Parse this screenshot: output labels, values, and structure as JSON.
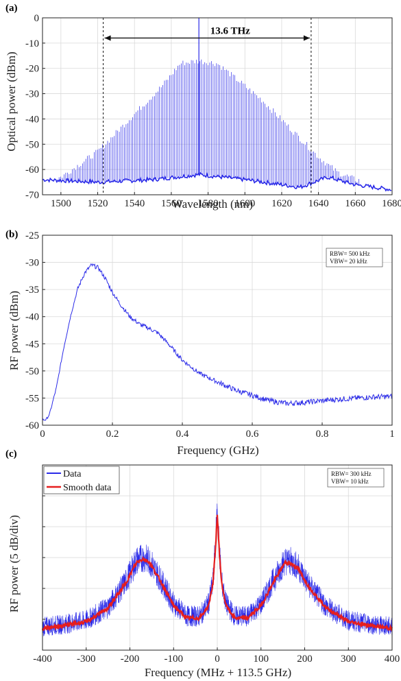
{
  "colors": {
    "blue": "#2a2ae8",
    "red": "#e61e1e",
    "grid": "#d9d9d9",
    "axis": "#222222"
  },
  "chart_data": [
    {
      "panel": "(a)",
      "type": "line",
      "xlabel": "Wavelength (nm)",
      "ylabel": "Optical power (dBm)",
      "xlim": [
        1490,
        1680
      ],
      "ylim": [
        -70,
        0
      ],
      "xticks": [
        1500,
        1520,
        1540,
        1560,
        1580,
        1600,
        1620,
        1640,
        1660,
        1680
      ],
      "yticks": [
        0,
        -10,
        -20,
        -30,
        -40,
        -50,
        -60,
        -70
      ],
      "grid": true,
      "series": [
        {
          "style": "comb",
          "line_spacing_nm": 0.91,
          "envelope": {
            "x": [
              1490,
              1500,
              1520,
              1540,
              1555,
              1565,
              1575,
              1585,
              1595,
              1610,
              1625,
              1640,
              1650,
              1660,
              1680
            ],
            "y": [
              -64,
              -63,
              -53,
              -38,
              -27,
              -18,
              -17,
              -18,
              -24,
              -33,
              -44,
              -55,
              -61,
              -64,
              -66
            ]
          },
          "peak_line": {
            "x": 1575,
            "y": 0
          },
          "noise_floor": {
            "x": [
              1490,
              1520,
              1550,
              1575,
              1600,
              1630,
              1645,
              1660,
              1680
            ],
            "y": [
              -64,
              -65,
              -64,
              -62,
              -64,
              -67,
              -63,
              -66,
              -68
            ]
          }
        }
      ],
      "annotation": {
        "text": "13.6 THz",
        "x_start": 1523,
        "x_end": 1636,
        "y": -8
      }
    },
    {
      "panel": "(b)",
      "type": "line",
      "xlabel": "Frequency (GHz)",
      "ylabel": "RF power (dBm)",
      "xlim": [
        0,
        1
      ],
      "ylim": [
        -60,
        -25
      ],
      "xticks": [
        0,
        0.2,
        0.4,
        0.6,
        0.8,
        1
      ],
      "xticklabels": [
        "0",
        "0.2",
        "0.4",
        "0.6",
        "0.8",
        "1"
      ],
      "yticks": [
        -25,
        -30,
        -35,
        -40,
        -45,
        -50,
        -55,
        -60
      ],
      "grid": true,
      "note": [
        "RBW= 500 kHz",
        "VBW= 20 kHz"
      ],
      "series": [
        {
          "x": [
            0,
            0.01,
            0.02,
            0.04,
            0.06,
            0.08,
            0.1,
            0.12,
            0.14,
            0.16,
            0.18,
            0.2,
            0.22,
            0.25,
            0.28,
            0.3,
            0.33,
            0.36,
            0.4,
            0.45,
            0.5,
            0.55,
            0.6,
            0.65,
            0.7,
            0.75,
            0.8,
            0.85,
            0.9,
            0.95,
            1.0
          ],
          "y": [
            -59,
            -59,
            -58,
            -53,
            -46,
            -40,
            -35,
            -32,
            -30.5,
            -31,
            -33,
            -35.5,
            -37.5,
            -40,
            -41.5,
            -42,
            -43,
            -45,
            -48,
            -50.5,
            -52,
            -53.5,
            -54.5,
            -55.5,
            -56,
            -55.8,
            -55.5,
            -55.2,
            -55,
            -54.8,
            -54.7
          ]
        }
      ]
    },
    {
      "panel": "(c)",
      "type": "line",
      "xlabel": "Frequency (MHz + 113.5 GHz)",
      "ylabel": "RF power (5 dB/div)",
      "xlim": [
        -400,
        400
      ],
      "ylim": [
        0,
        30
      ],
      "xticks": [
        -400,
        -300,
        -200,
        -100,
        0,
        100,
        200,
        300,
        400
      ],
      "yticks": [
        0,
        5,
        10,
        15,
        20,
        25,
        30
      ],
      "show_y_ticklabels": false,
      "grid": true,
      "legend": {
        "position": "top-left"
      },
      "note": [
        "RBW= 300 kHz",
        "VBW= 10 kHz"
      ],
      "series": [
        {
          "name": "Data",
          "color": "#2a2ae8",
          "noise_band_db": 2.2,
          "x": [
            -400,
            -350,
            -300,
            -250,
            -210,
            -185,
            -170,
            -155,
            -130,
            -100,
            -70,
            -40,
            -20,
            -10,
            -5,
            0,
            5,
            10,
            20,
            40,
            70,
            100,
            130,
            155,
            170,
            185,
            210,
            250,
            300,
            350,
            400
          ],
          "y": [
            3.8,
            4.2,
            4.8,
            7.0,
            11.0,
            14.5,
            15.0,
            14.5,
            11.5,
            7.5,
            5.5,
            5.5,
            7.5,
            11,
            16,
            23,
            16,
            11,
            7.5,
            5.5,
            5.5,
            7.5,
            11.5,
            14.5,
            14.3,
            13.5,
            10.5,
            7.0,
            4.8,
            4.2,
            3.8
          ]
        },
        {
          "name": "Smooth data",
          "color": "#e61e1e",
          "x": [
            -400,
            -350,
            -300,
            -250,
            -210,
            -185,
            -170,
            -155,
            -130,
            -100,
            -70,
            -40,
            -20,
            -10,
            -5,
            0,
            5,
            10,
            20,
            40,
            70,
            100,
            130,
            155,
            170,
            185,
            210,
            250,
            300,
            350,
            400
          ],
          "y": [
            3.5,
            4.0,
            4.6,
            6.8,
            10.8,
            14.2,
            14.8,
            14.2,
            11.2,
            7.2,
            5.2,
            5.2,
            7.2,
            10.8,
            15.5,
            22,
            15.5,
            10.8,
            7.2,
            5.2,
            5.2,
            7.2,
            11.2,
            14.2,
            14.0,
            13.2,
            10.2,
            6.8,
            4.6,
            4.0,
            3.5
          ]
        }
      ]
    }
  ]
}
